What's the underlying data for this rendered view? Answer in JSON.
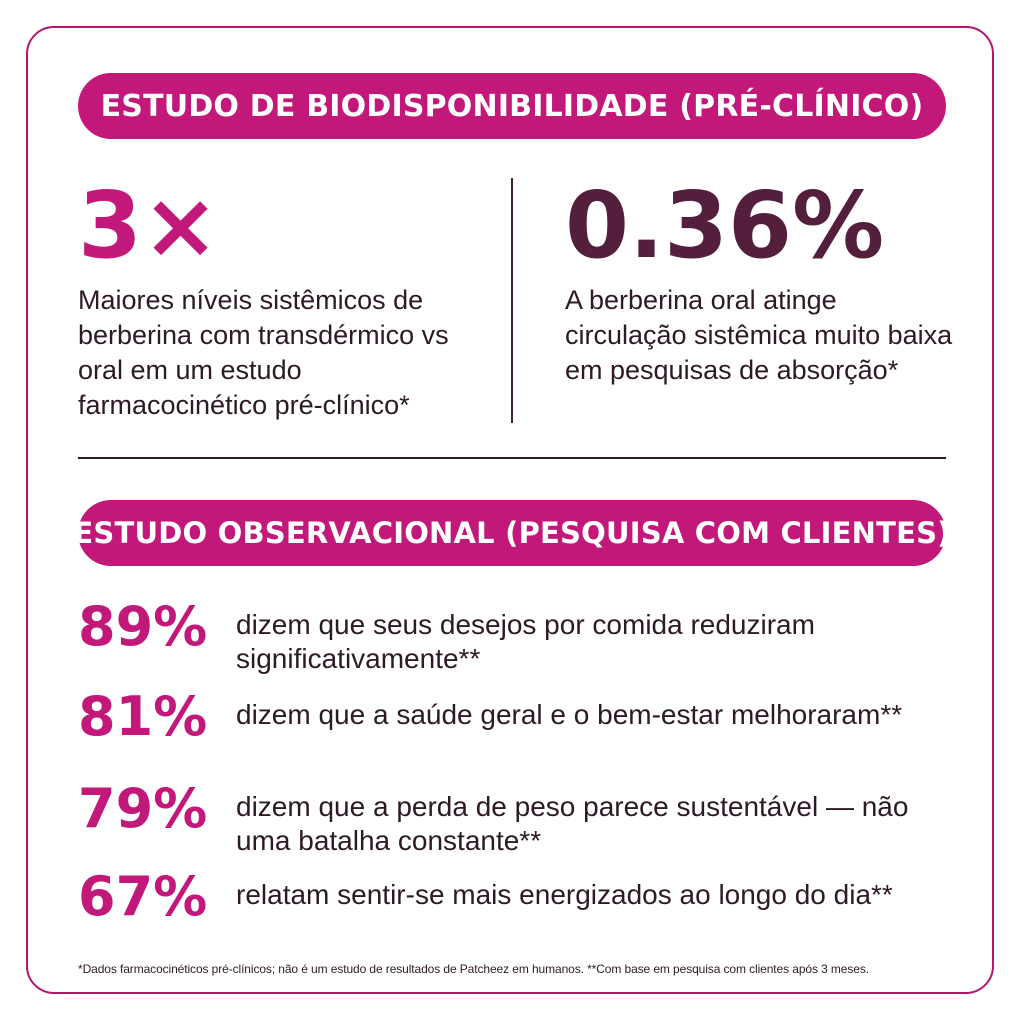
{
  "section1": {
    "title": "ESTUDO DE BIODISPONIBILIDADE (PRÉ-CLÍNICO)",
    "left": {
      "value": "3×",
      "description": "Maiores níveis sistêmicos de berberina com transdérmico vs oral em um estudo farmacocinético pré-clínico*"
    },
    "right": {
      "value": "0.36%",
      "description": "A berberina oral atinge circulação sistêmica muito baixa em pesquisas de absorção*"
    }
  },
  "section2": {
    "title": "ESTUDO OBSERVACIONAL (PESQUISA COM CLIENTES)",
    "rows": [
      {
        "percent": "89%",
        "text": "dizem que seus desejos por comida reduziram significativamente**"
      },
      {
        "percent": "81%",
        "text": "dizem que a saúde geral e o bem-estar melhoraram**"
      },
      {
        "percent": "79%",
        "text": "dizem que a perda de peso parece sustentável — não uma batalha constante**"
      },
      {
        "percent": "67%",
        "text": "relatam sentir-se mais energizados ao longo do dia**"
      }
    ]
  },
  "footnote": "*Dados farmacocinéticos pré-clínicos; não é um estudo de resultados de Patcheez em humanos. **Com base em pesquisa com clientes após 3 meses.",
  "colors": {
    "accent": "#c2187a",
    "dark_stat": "#541f3c",
    "text": "#2d1a26",
    "border": "#b0186e"
  }
}
